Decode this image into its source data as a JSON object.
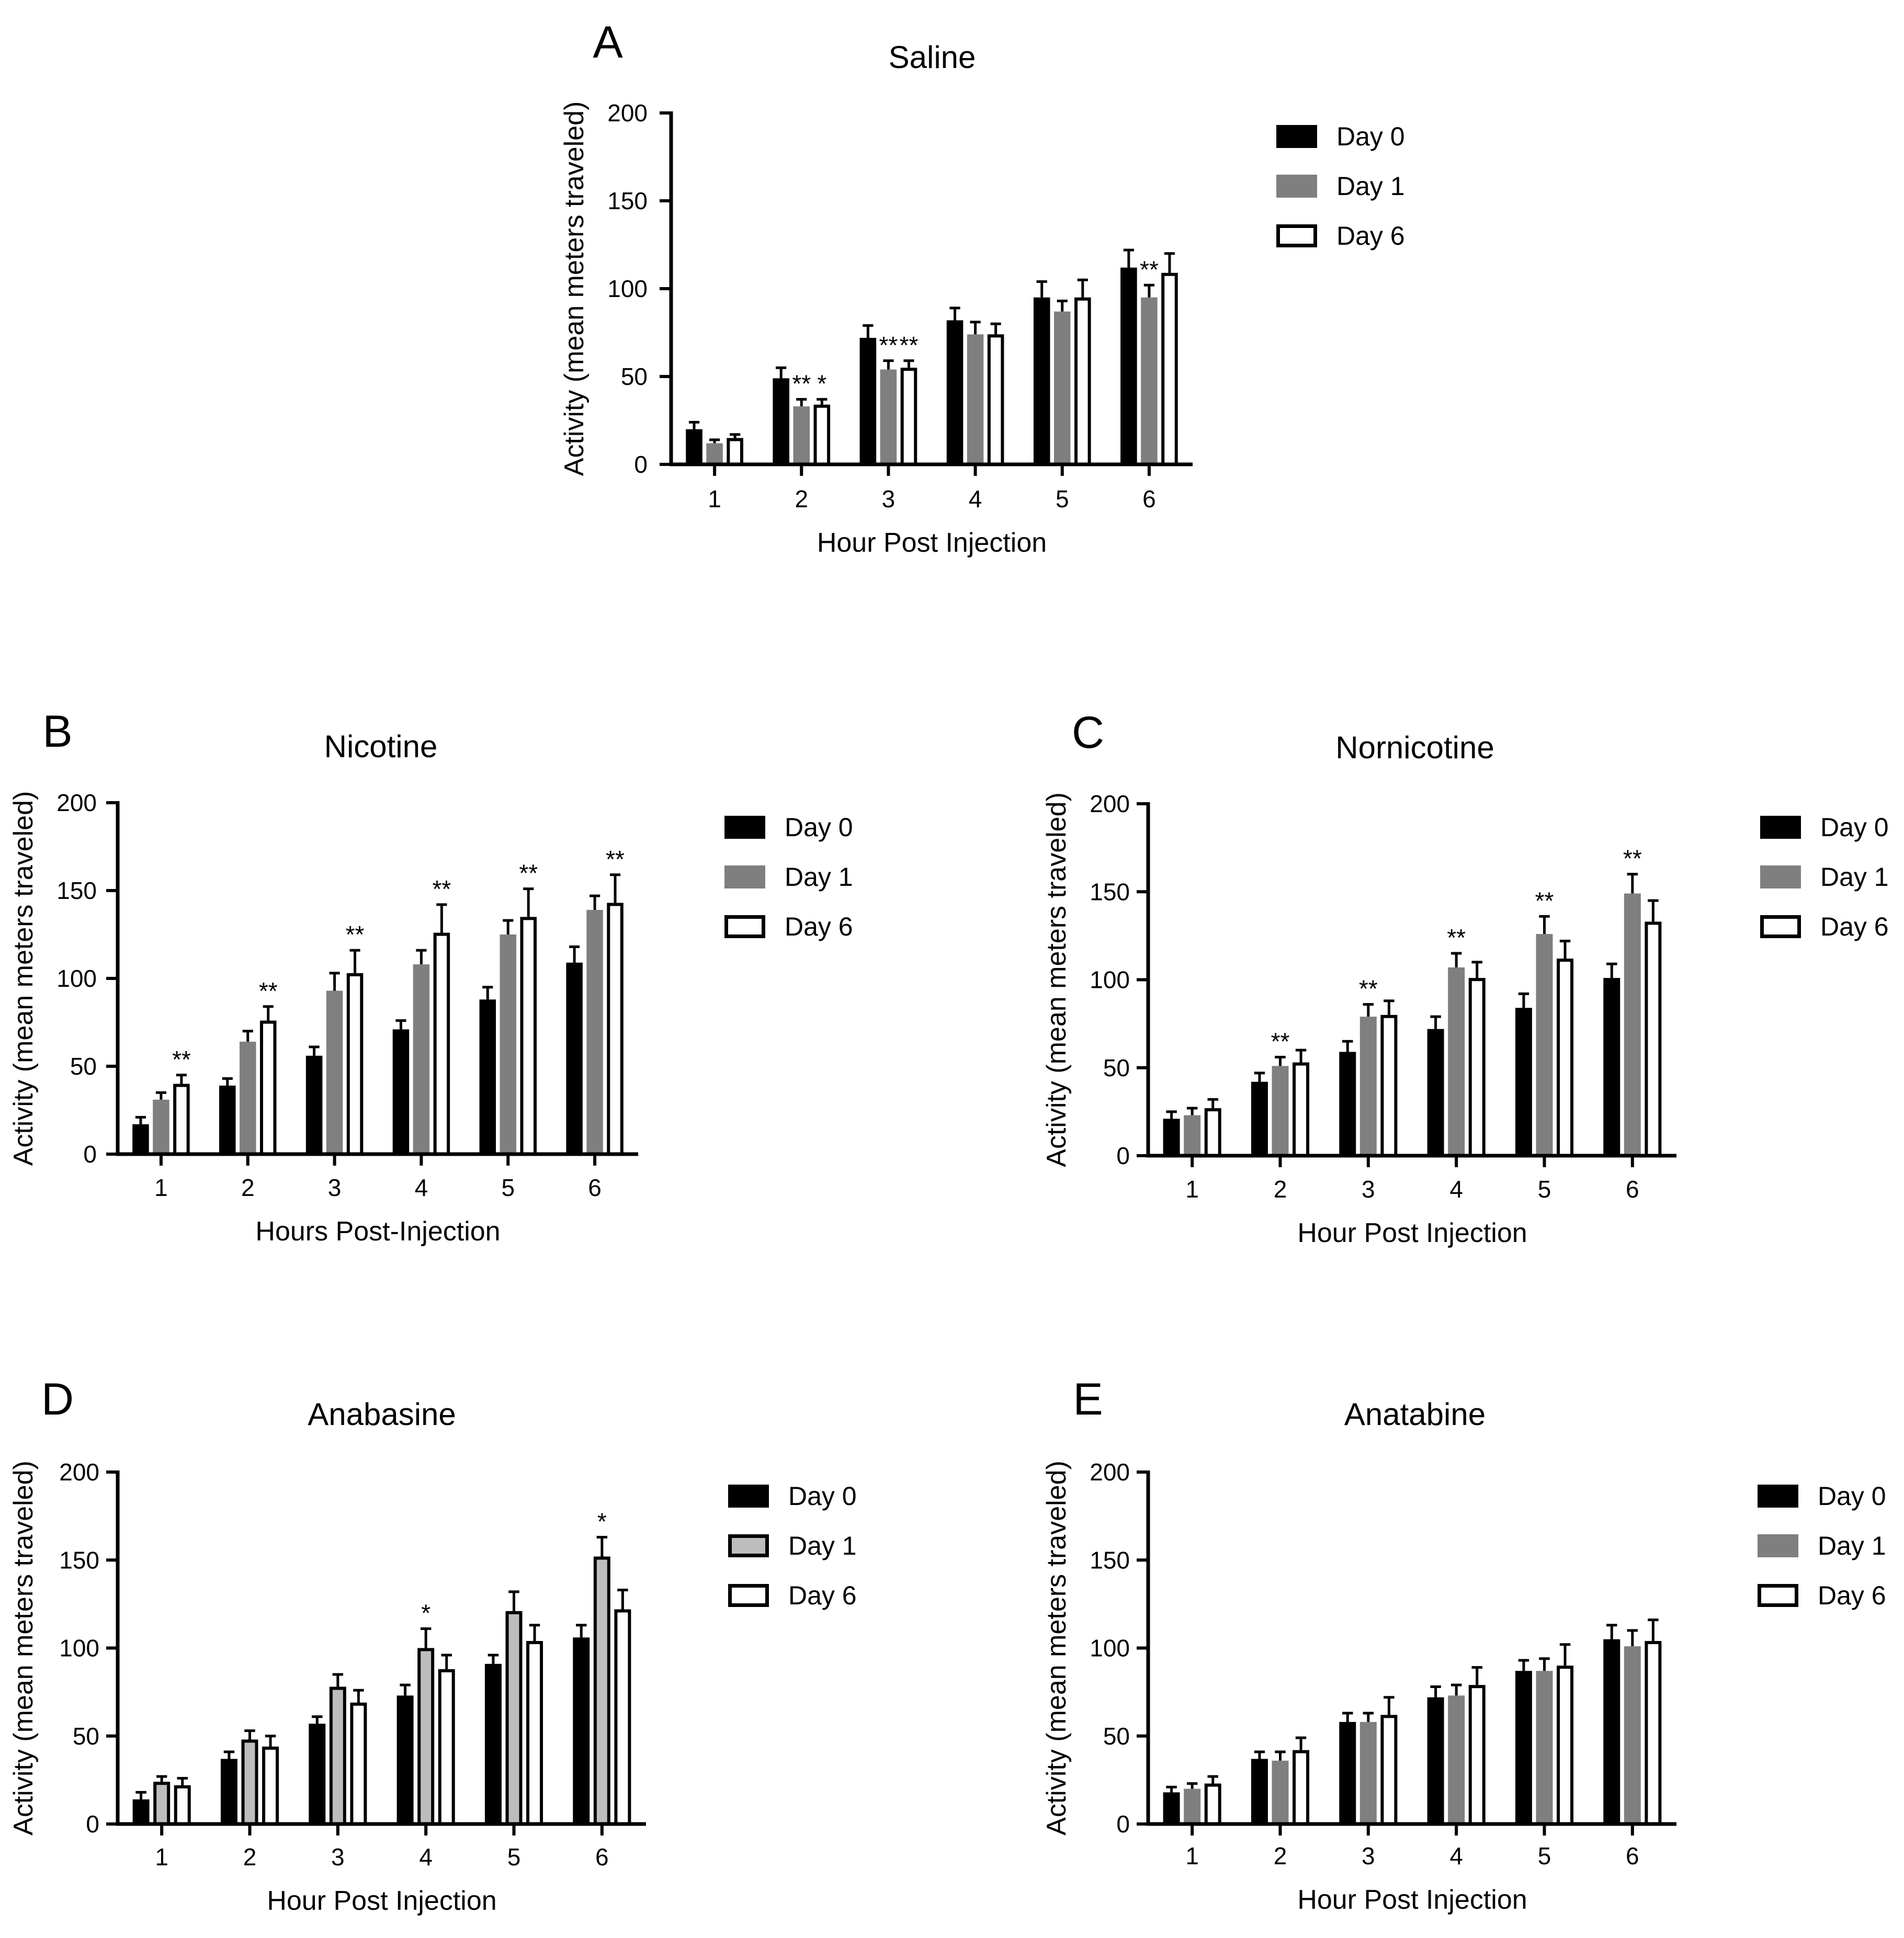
{
  "figure": {
    "colors": {
      "day0": "#000000",
      "day1": "#7f7f7f",
      "day1_light": "#bdbdbd",
      "day6": "#ffffff",
      "axis": "#000000"
    }
  },
  "chart_data": [
    {
      "panel": "A",
      "type": "bar",
      "title": "Saline",
      "xlabel": "Hour Post Injection",
      "ylabel": "Activity (mean meters traveled)",
      "ylim": [
        0,
        200
      ],
      "yticks": [
        "0",
        "50",
        "100",
        "150",
        "200"
      ],
      "categories": [
        "1",
        "2",
        "3",
        "4",
        "5",
        "6"
      ],
      "series": [
        {
          "name": "Day 0",
          "values": [
            20,
            49,
            72,
            82,
            95,
            112
          ],
          "errors": [
            4,
            6,
            7,
            7,
            9,
            10
          ]
        },
        {
          "name": "Day 1",
          "values": [
            12,
            33,
            54,
            74,
            87,
            95
          ],
          "errors": [
            2,
            4,
            5,
            7,
            6,
            7
          ]
        },
        {
          "name": "Day 6",
          "values": [
            15,
            34,
            55,
            74,
            95,
            109
          ],
          "errors": [
            2,
            3,
            4,
            6,
            10,
            11
          ]
        }
      ],
      "annotations": [
        {
          "category": "2",
          "series": "Day 1",
          "text": "**"
        },
        {
          "category": "2",
          "series": "Day 6",
          "text": "*"
        },
        {
          "category": "3",
          "series": "Day 1",
          "text": "**"
        },
        {
          "category": "3",
          "series": "Day 6",
          "text": "**"
        },
        {
          "category": "6",
          "series": "Day 1",
          "text": "**"
        }
      ]
    },
    {
      "panel": "B",
      "type": "bar",
      "title": "Nicotine",
      "xlabel": "Hours Post-Injection",
      "ylabel": "Activity (mean meters traveled)",
      "ylim": [
        0,
        200
      ],
      "yticks": [
        "0",
        "50",
        "100",
        "150",
        "200"
      ],
      "categories": [
        "1",
        "2",
        "3",
        "4",
        "5",
        "6"
      ],
      "series": [
        {
          "name": "Day 0",
          "values": [
            17,
            39,
            56,
            71,
            88,
            109
          ],
          "errors": [
            4,
            4,
            5,
            5,
            7,
            9
          ]
        },
        {
          "name": "Day 1",
          "values": [
            31,
            64,
            93,
            108,
            125,
            139
          ],
          "errors": [
            4,
            6,
            10,
            8,
            8,
            8
          ]
        },
        {
          "name": "Day 6",
          "values": [
            40,
            76,
            103,
            126,
            135,
            143
          ],
          "errors": [
            5,
            8,
            13,
            16,
            16,
            16
          ]
        }
      ],
      "annotations": [
        {
          "category": "1",
          "series": "Day 6",
          "text": "**"
        },
        {
          "category": "2",
          "series": "Day 6",
          "text": "**"
        },
        {
          "category": "3",
          "series": "Day 6",
          "text": "**"
        },
        {
          "category": "4",
          "series": "Day 6",
          "text": "**"
        },
        {
          "category": "5",
          "series": "Day 6",
          "text": "**"
        },
        {
          "category": "6",
          "series": "Day 6",
          "text": "**"
        }
      ]
    },
    {
      "panel": "C",
      "type": "bar",
      "title": "Nornicotine",
      "xlabel": "Hour Post Injection",
      "ylabel": "Activity (mean meters traveled)",
      "ylim": [
        0,
        200
      ],
      "yticks": [
        "0",
        "50",
        "100",
        "150",
        "200"
      ],
      "categories": [
        "1",
        "2",
        "3",
        "4",
        "5",
        "6"
      ],
      "series": [
        {
          "name": "Day 0",
          "values": [
            21,
            42,
            59,
            72,
            84,
            101
          ],
          "errors": [
            4,
            5,
            6,
            7,
            8,
            8
          ]
        },
        {
          "name": "Day 1",
          "values": [
            23,
            51,
            79,
            107,
            126,
            149
          ],
          "errors": [
            4,
            5,
            7,
            8,
            10,
            11
          ]
        },
        {
          "name": "Day 6",
          "values": [
            27,
            53,
            80,
            101,
            112,
            133
          ],
          "errors": [
            5,
            7,
            8,
            9,
            10,
            12
          ]
        }
      ],
      "annotations": [
        {
          "category": "2",
          "series": "Day 1",
          "text": "**"
        },
        {
          "category": "3",
          "series": "Day 1",
          "text": "**"
        },
        {
          "category": "4",
          "series": "Day 1",
          "text": "**"
        },
        {
          "category": "5",
          "series": "Day 1",
          "text": "**"
        },
        {
          "category": "6",
          "series": "Day 1",
          "text": "**"
        }
      ]
    },
    {
      "panel": "D",
      "type": "bar",
      "title": "Anabasine",
      "xlabel": "Hour Post Injection",
      "ylabel": "Activity (mean meters traveled)",
      "ylim": [
        0,
        200
      ],
      "yticks": [
        "0",
        "50",
        "100",
        "150",
        "200"
      ],
      "categories": [
        "1",
        "2",
        "3",
        "4",
        "5",
        "6"
      ],
      "lightDay1": true,
      "series": [
        {
          "name": "Day 0",
          "values": [
            14,
            37,
            57,
            73,
            91,
            106
          ],
          "errors": [
            4,
            4,
            4,
            6,
            5,
            7
          ]
        },
        {
          "name": "Day 1",
          "values": [
            24,
            48,
            78,
            100,
            121,
            152
          ],
          "errors": [
            3,
            5,
            7,
            11,
            11,
            11
          ]
        },
        {
          "name": "Day 6",
          "values": [
            22,
            44,
            69,
            88,
            104,
            122
          ],
          "errors": [
            4,
            6,
            7,
            8,
            9,
            11
          ]
        }
      ],
      "annotations": [
        {
          "category": "4",
          "series": "Day 1",
          "text": "*"
        },
        {
          "category": "6",
          "series": "Day 1",
          "text": "*"
        }
      ]
    },
    {
      "panel": "E",
      "type": "bar",
      "title": "Anatabine",
      "xlabel": "Hour Post Injection",
      "ylabel": "Activity (mean meters traveled)",
      "ylim": [
        0,
        200
      ],
      "yticks": [
        "0",
        "50",
        "100",
        "150",
        "200"
      ],
      "categories": [
        "1",
        "2",
        "3",
        "4",
        "5",
        "6"
      ],
      "series": [
        {
          "name": "Day 0",
          "values": [
            18,
            37,
            58,
            72,
            87,
            105
          ],
          "errors": [
            3,
            4,
            5,
            6,
            6,
            8
          ]
        },
        {
          "name": "Day 1",
          "values": [
            20,
            36,
            58,
            73,
            87,
            101
          ],
          "errors": [
            3,
            5,
            5,
            6,
            7,
            9
          ]
        },
        {
          "name": "Day 6",
          "values": [
            23,
            42,
            62,
            79,
            90,
            104
          ],
          "errors": [
            4,
            7,
            10,
            10,
            12,
            12
          ]
        }
      ],
      "annotations": []
    }
  ]
}
